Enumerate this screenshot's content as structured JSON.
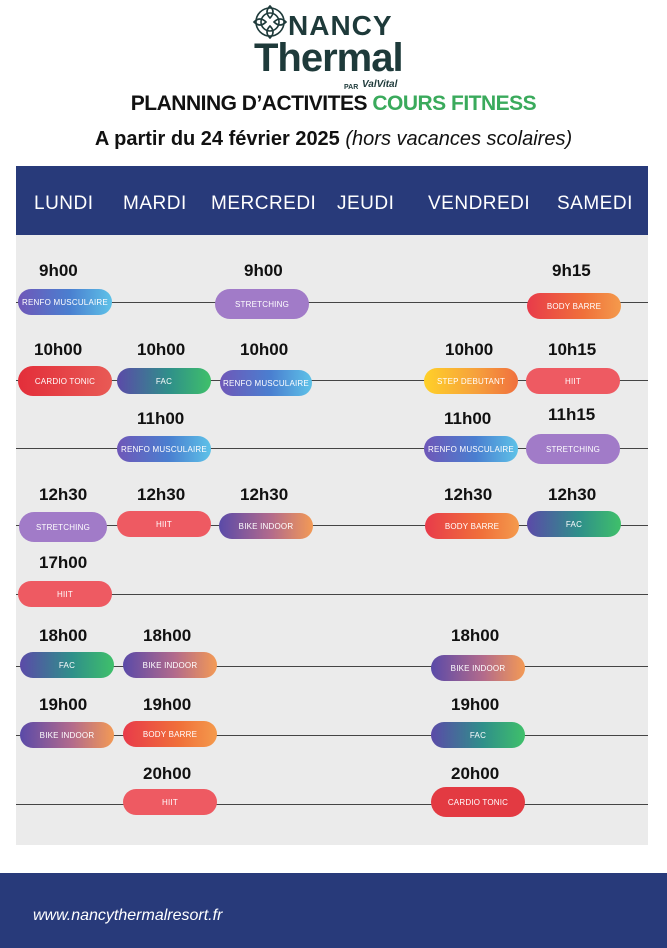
{
  "brand": {
    "nancy": "NANCY",
    "thermal": "Thermal",
    "par": "PAR",
    "valvital": "ValVital"
  },
  "title": {
    "part1": "PLANNING D’ACTIVITES",
    "part2": "COURS FITNESS"
  },
  "subtitle": {
    "part1": "A partir du 24 février 2025",
    "part2": "(hors vacances scolaires)"
  },
  "days": [
    "LUNDI",
    "MARDI",
    "MERCREDI",
    "JEUDI",
    "VENDREDI",
    "SAMEDI"
  ],
  "schedule": {
    "r1": {
      "lundi": {
        "time": "9h00",
        "label": "RENFO MUSCULAIRE"
      },
      "mercredi": {
        "time": "9h00",
        "label": "STRETCHING"
      },
      "samedi": {
        "time": "9h15",
        "label": "BODY BARRE"
      }
    },
    "r2": {
      "lundi": {
        "time": "10h00",
        "label": "CARDIO TONIC"
      },
      "mardi": {
        "time": "10h00",
        "label": "FAC"
      },
      "mercredi": {
        "time": "10h00",
        "label": "RENFO MUSCULAIRE"
      },
      "vendredi": {
        "time": "10h00",
        "label": "STEP DEBUTANT"
      },
      "samedi": {
        "time": "10h15",
        "label": "HIIT"
      }
    },
    "r3": {
      "mardi": {
        "time": "11h00",
        "label": "RENFO MUSCULAIRE"
      },
      "vendredi": {
        "time": "11h00",
        "label": "RENFO MUSCULAIRE"
      },
      "samedi": {
        "time": "11h15",
        "label": "STRETCHING"
      }
    },
    "r4": {
      "lundi": {
        "time": "12h30",
        "label": "STRETCHING"
      },
      "mardi": {
        "time": "12h30",
        "label": "HIIT"
      },
      "mercredi": {
        "time": "12h30",
        "label": "BIKE INDOOR"
      },
      "vendredi": {
        "time": "12h30",
        "label": "BODY BARRE"
      },
      "samedi": {
        "time": "12h30",
        "label": "FAC"
      }
    },
    "r5": {
      "lundi": {
        "time": "17h00",
        "label": "HIIT"
      }
    },
    "r6": {
      "lundi": {
        "time": "18h00",
        "label": "FAC"
      },
      "mardi": {
        "time": "18h00",
        "label": "BIKE INDOOR"
      },
      "vendredi": {
        "time": "18h00",
        "label": "BIKE INDOOR"
      }
    },
    "r7": {
      "lundi": {
        "time": "19h00",
        "label": "BIKE INDOOR"
      },
      "mardi": {
        "time": "19h00",
        "label": "BODY BARRE"
      },
      "vendredi": {
        "time": "19h00",
        "label": "FAC"
      }
    },
    "r8": {
      "mardi": {
        "time": "20h00",
        "label": "HIIT"
      },
      "vendredi": {
        "time": "20h00",
        "label": "CARDIO TONIC"
      }
    }
  },
  "footer": {
    "url": "www.nancythermalresort.fr"
  }
}
